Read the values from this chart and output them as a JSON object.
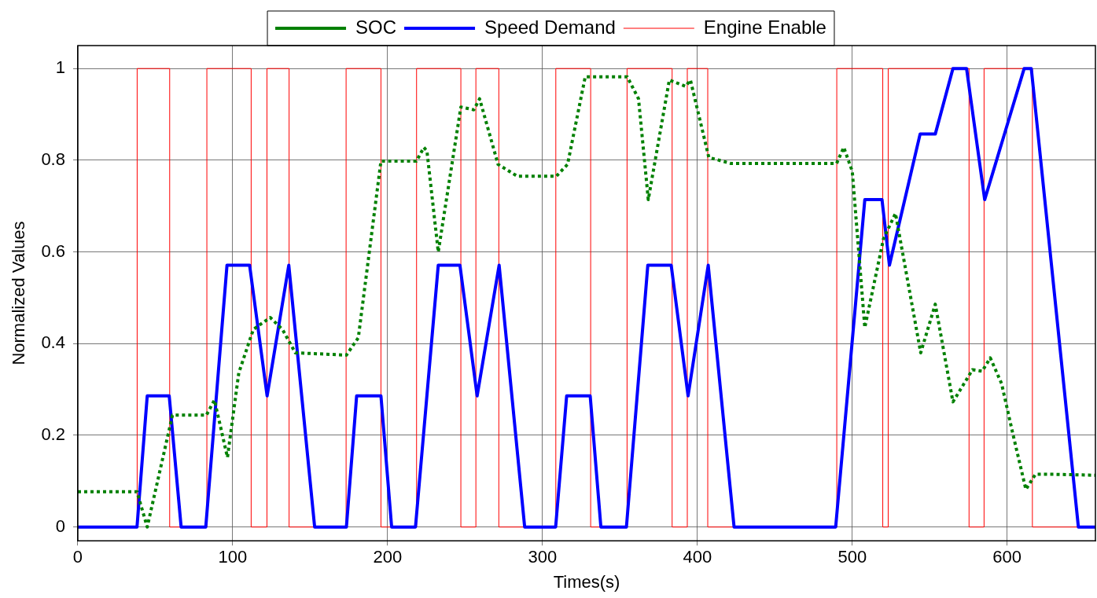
{
  "chart_data": {
    "type": "line",
    "xlabel": "Times(s)",
    "ylabel": "Normalized Values",
    "xlim": [
      0,
      657
    ],
    "ylim": [
      -0.03,
      1.05
    ],
    "xticks": [
      0,
      100,
      200,
      300,
      400,
      500,
      600
    ],
    "yticks": [
      0,
      0.2,
      0.4,
      0.6,
      0.8,
      1
    ],
    "grid": true,
    "legend": "top",
    "marker": "none",
    "series": [
      {
        "name": "SOC",
        "color": "#008000",
        "line_style": "dotted",
        "x": [
          0,
          38.2,
          44.8,
          61.1,
          83.0,
          88.2,
          96.6,
          103.9,
          113.3,
          124.2,
          132.1,
          140.4,
          173.4,
          181.1,
          195.7,
          218.6,
          223.4,
          225.4,
          232.7,
          247.3,
          255.7,
          259.4,
          271.3,
          283.8,
          308.9,
          316.2,
          327.6,
          354.7,
          362.0,
          368.3,
          381.9,
          392.4,
          395.5,
          407.4,
          421.6,
          489.9,
          494.5,
          500.0,
          508.1,
          520.2,
          527.9,
          544.2,
          553.6,
          565.0,
          577.6,
          583.9,
          589.1,
          596.4,
          603.7,
          612.1,
          618.3,
          630.8,
          657
        ],
        "values": [
          0.077,
          0.077,
          0,
          0.244,
          0.244,
          0.277,
          0.152,
          0.336,
          0.431,
          0.457,
          0.431,
          0.38,
          0.375,
          0.413,
          0.798,
          0.798,
          0.828,
          0.82,
          0.6,
          0.916,
          0.91,
          0.934,
          0.791,
          0.765,
          0.765,
          0.791,
          0.982,
          0.982,
          0.934,
          0.714,
          0.975,
          0.961,
          0.975,
          0.806,
          0.793,
          0.793,
          0.828,
          0.776,
          0.435,
          0.629,
          0.684,
          0.38,
          0.486,
          0.273,
          0.343,
          0.34,
          0.369,
          0.313,
          0.203,
          0.082,
          0.115,
          0.115,
          0.113
        ]
      },
      {
        "name": "Speed Demand",
        "color": "#0000ff",
        "line_style": "solid",
        "x": [
          0,
          38.2,
          44.8,
          59.0,
          66.7,
          82.6,
          96.3,
          110.9,
          122.2,
          136.2,
          152.9,
          173.4,
          180.0,
          195.7,
          202.6,
          218.0,
          232.7,
          246.7,
          257.8,
          272.0,
          288.5,
          308.5,
          315.6,
          330.8,
          337.7,
          354.2,
          368.0,
          383.1,
          394.0,
          407.0,
          423.7,
          489.3,
          508.1,
          519.2,
          524.0,
          543.8,
          553.6,
          565.0,
          573.8,
          585.5,
          611.0,
          615.6,
          646.0,
          657
        ],
        "values": [
          0,
          0,
          0.286,
          0.286,
          0,
          0,
          0.571,
          0.571,
          0.286,
          0.571,
          0,
          0,
          0.286,
          0.286,
          0,
          0,
          0.571,
          0.571,
          0.286,
          0.571,
          0,
          0,
          0.286,
          0.286,
          0,
          0,
          0.571,
          0.571,
          0.286,
          0.571,
          0,
          0,
          0.714,
          0.714,
          0.571,
          0.857,
          0.857,
          1,
          1,
          0.714,
          1,
          1,
          0,
          0
        ]
      },
      {
        "name": "Engine Enable",
        "type": "step",
        "color": "#ff0000",
        "line_style": "solid",
        "x": [
          0,
          38.3,
          59.3,
          83.3,
          111.9,
          122.1,
          136.4,
          173.2,
          195.7,
          218.7,
          247.3,
          257.0,
          271.8,
          308.6,
          331.1,
          354.6,
          383.7,
          393.5,
          406.7,
          490.0,
          519.7,
          523.2,
          575.4,
          585.1,
          616.3,
          657
        ],
        "values": [
          0,
          1,
          0,
          1,
          0,
          1,
          0,
          1,
          0,
          1,
          0,
          1,
          0,
          1,
          0,
          1,
          0,
          1,
          0,
          1,
          0,
          1,
          0,
          1,
          0,
          0
        ]
      }
    ]
  }
}
